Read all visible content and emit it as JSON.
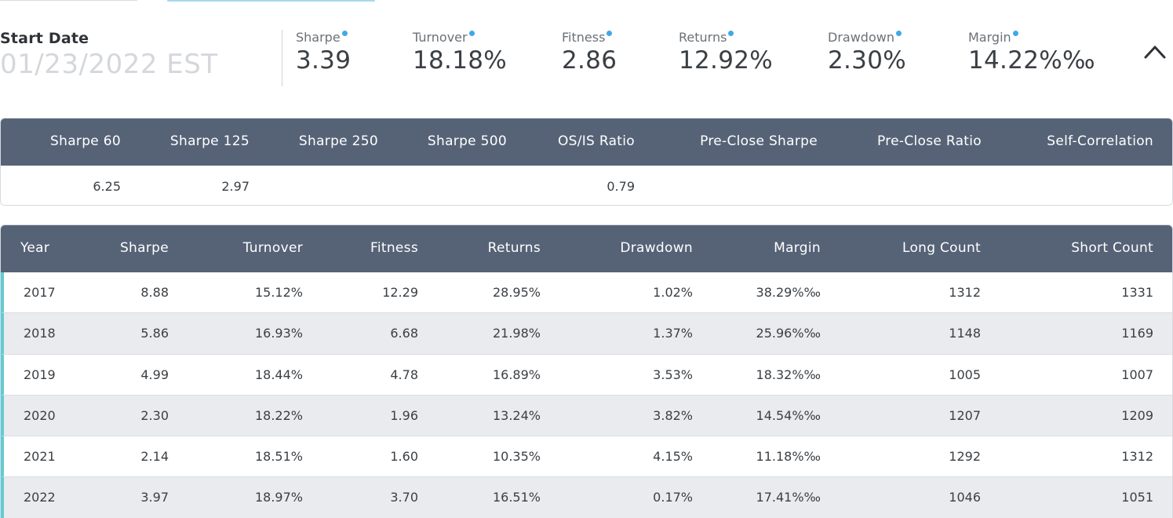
{
  "summary": {
    "start_date_label": "Start Date",
    "start_date_value": "01/23/2022 EST",
    "metrics": [
      {
        "label": "Sharpe",
        "value": "3.39"
      },
      {
        "label": "Turnover",
        "value": "18.18%"
      },
      {
        "label": "Fitness",
        "value": "2.86"
      },
      {
        "label": "Returns",
        "value": "12.92%"
      },
      {
        "label": "Drawdown",
        "value": "2.30%"
      },
      {
        "label": "Margin",
        "value": "14.22%‰"
      }
    ],
    "info_dot_color": "#3fa9e8",
    "collapse_icon": "chevron-up-icon"
  },
  "ratios": {
    "headers": [
      "Sharpe 60",
      "Sharpe 125",
      "Sharpe 250",
      "Sharpe 500",
      "OS/IS Ratio",
      "Pre-Close Sharpe",
      "Pre-Close Ratio",
      "Self-Correlation"
    ],
    "values": [
      "6.25",
      "2.97",
      "",
      "",
      "0.79",
      "",
      "",
      ""
    ]
  },
  "yearly": {
    "headers": [
      "Year",
      "Sharpe",
      "Turnover",
      "Fitness",
      "Returns",
      "Drawdown",
      "Margin",
      "Long Count",
      "Short Count"
    ],
    "rows": [
      [
        "2017",
        "8.88",
        "15.12%",
        "12.29",
        "28.95%",
        "1.02%",
        "38.29%‰",
        "1312",
        "1331"
      ],
      [
        "2018",
        "5.86",
        "16.93%",
        "6.68",
        "21.98%",
        "1.37%",
        "25.96%‰",
        "1148",
        "1169"
      ],
      [
        "2019",
        "4.99",
        "18.44%",
        "4.78",
        "16.89%",
        "3.53%",
        "18.32%‰",
        "1005",
        "1007"
      ],
      [
        "2020",
        "2.30",
        "18.22%",
        "1.96",
        "13.24%",
        "3.82%",
        "14.54%‰",
        "1207",
        "1209"
      ],
      [
        "2021",
        "2.14",
        "18.51%",
        "1.60",
        "10.35%",
        "4.15%",
        "11.18%‰",
        "1292",
        "1312"
      ],
      [
        "2022",
        "3.97",
        "18.97%",
        "3.70",
        "16.51%",
        "0.17%",
        "17.41%‰",
        "1046",
        "1051"
      ]
    ],
    "row_accent_color": "#62cbd3",
    "header_bg_color": "#566377"
  }
}
